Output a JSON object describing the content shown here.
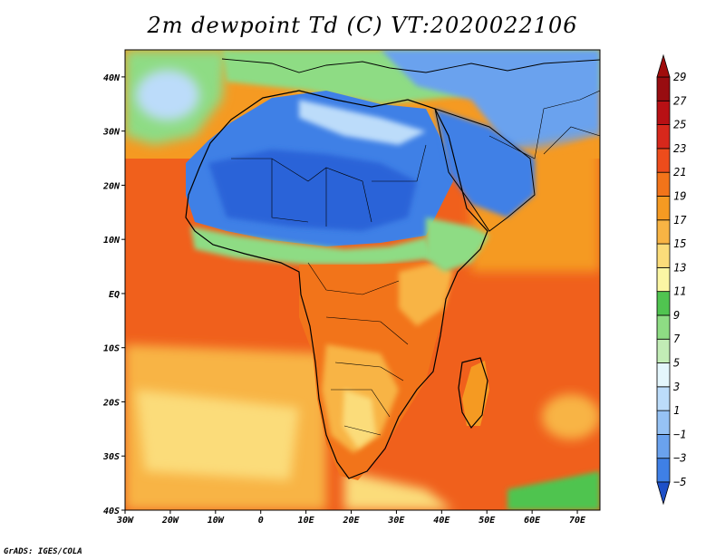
{
  "title": "2m dewpoint Td (C) VT:2020022106",
  "credit": "GrADS: IGES/COLA",
  "map": {
    "lon_range": [
      -30,
      75
    ],
    "lat_range": [
      -40,
      45
    ],
    "lon_ticks": [
      {
        "value": -30,
        "label": "30W"
      },
      {
        "value": -20,
        "label": "20W"
      },
      {
        "value": -10,
        "label": "10W"
      },
      {
        "value": 0,
        "label": "0"
      },
      {
        "value": 10,
        "label": "10E"
      },
      {
        "value": 20,
        "label": "20E"
      },
      {
        "value": 30,
        "label": "30E"
      },
      {
        "value": 40,
        "label": "40E"
      },
      {
        "value": 50,
        "label": "50E"
      },
      {
        "value": 60,
        "label": "60E"
      },
      {
        "value": 70,
        "label": "70E"
      }
    ],
    "lat_ticks": [
      {
        "value": 40,
        "label": "40N"
      },
      {
        "value": 30,
        "label": "30N"
      },
      {
        "value": 20,
        "label": "20N"
      },
      {
        "value": 10,
        "label": "10N"
      },
      {
        "value": 0,
        "label": "EQ"
      },
      {
        "value": -10,
        "label": "10S"
      },
      {
        "value": -20,
        "label": "20S"
      },
      {
        "value": -30,
        "label": "30S"
      },
      {
        "value": -40,
        "label": "40S"
      }
    ]
  },
  "colorbar": {
    "levels": [
      {
        "label": "−5",
        "color": "#2a64d8"
      },
      {
        "label": "−3",
        "color": "#3f80e6"
      },
      {
        "label": "−1",
        "color": "#6aa2ee"
      },
      {
        "label": "1",
        "color": "#96c2f4"
      },
      {
        "label": "3",
        "color": "#bcdcfa"
      },
      {
        "label": "5",
        "color": "#e4f6fc"
      },
      {
        "label": "7",
        "color": "#c2ecb6"
      },
      {
        "label": "9",
        "color": "#8edc84"
      },
      {
        "label": "11",
        "color": "#50c450"
      },
      {
        "label": "13",
        "color": "#fbf6a4"
      },
      {
        "label": "15",
        "color": "#fbdc7a"
      },
      {
        "label": "17",
        "color": "#f8b444"
      },
      {
        "label": "19",
        "color": "#f59a22"
      },
      {
        "label": "21",
        "color": "#f2741a"
      },
      {
        "label": "23",
        "color": "#ed4c1c"
      },
      {
        "label": "25",
        "color": "#d7281c"
      },
      {
        "label": "27",
        "color": "#b81014"
      },
      {
        "label": "29",
        "color": "#980c10"
      }
    ],
    "low_color": "#1e50c8",
    "high_color": "#a00c0c"
  }
}
